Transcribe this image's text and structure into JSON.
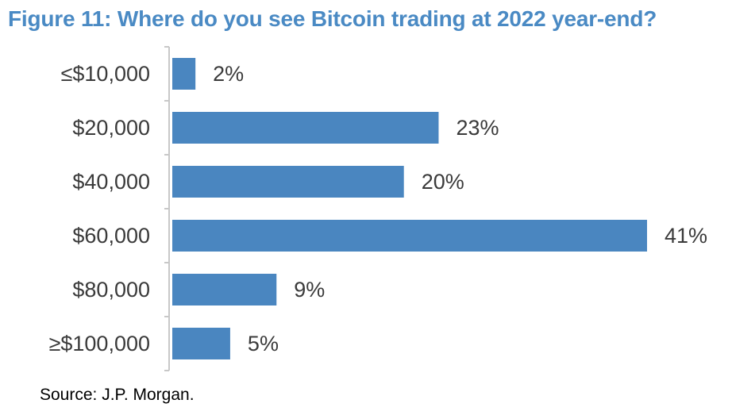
{
  "colors": {
    "title": "#4a8ac4",
    "bar": "#4a86c0",
    "axis": "#c8c8c8"
  },
  "chart_data": {
    "type": "bar",
    "orientation": "horizontal",
    "title": "Figure 11: Where do you see Bitcoin trading at 2022 year-end?",
    "categories": [
      "≤$10,000",
      "$20,000",
      "$40,000",
      "$60,000",
      "$80,000",
      "≥$100,000"
    ],
    "values": [
      2,
      23,
      20,
      41,
      9,
      5
    ],
    "value_labels": [
      "2%",
      "23%",
      "20%",
      "41%",
      "9%",
      "5%"
    ],
    "xlim": [
      0,
      41
    ],
    "grid": false,
    "legend": "none",
    "source": "Source: J.P. Morgan."
  }
}
